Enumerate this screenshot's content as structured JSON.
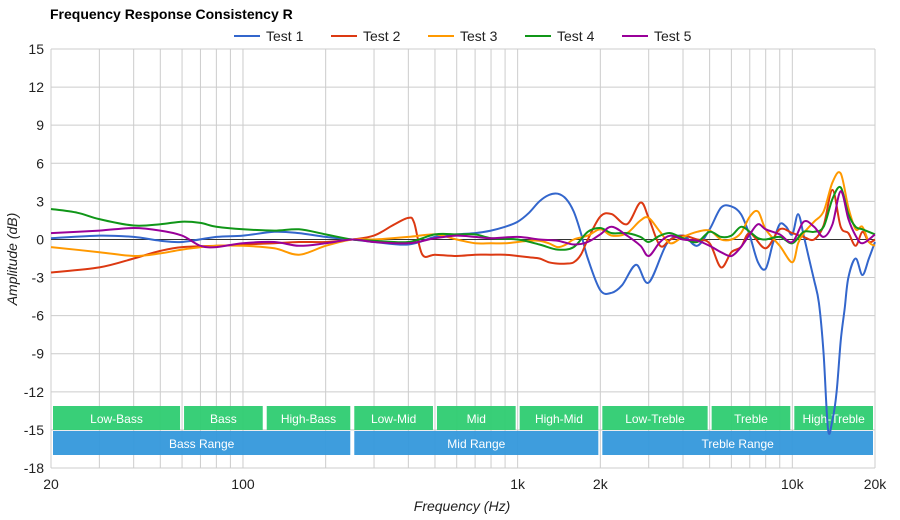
{
  "chart_data": {
    "type": "line",
    "title": "Frequency Response Consistency R",
    "xlabel": "Frequency (Hz)",
    "ylabel": "Amplitude (dB)",
    "xscale": "log",
    "xlim": [
      20,
      20000
    ],
    "ylim": [
      -18,
      15
    ],
    "grid": true,
    "legend_position": "top",
    "x_tick_labels": [
      {
        "value": 20,
        "label": "20"
      },
      {
        "value": 100,
        "label": "100"
      },
      {
        "value": 1000,
        "label": "1k"
      },
      {
        "value": 2000,
        "label": "2k"
      },
      {
        "value": 10000,
        "label": "10k"
      },
      {
        "value": 20000,
        "label": "20k"
      }
    ],
    "y_ticks": [
      15,
      12,
      9,
      6,
      3,
      0,
      -3,
      -6,
      -9,
      -12,
      -15,
      -18
    ],
    "ranges": [
      {
        "label": "Low-Bass",
        "from": 20,
        "to": 60,
        "row": 1
      },
      {
        "label": "Bass",
        "from": 60,
        "to": 120,
        "row": 1
      },
      {
        "label": "High-Bass",
        "from": 120,
        "to": 250,
        "row": 1
      },
      {
        "label": "Low-Mid",
        "from": 250,
        "to": 500,
        "row": 1
      },
      {
        "label": "Mid",
        "from": 500,
        "to": 1000,
        "row": 1
      },
      {
        "label": "High-Mid",
        "from": 1000,
        "to": 2000,
        "row": 1
      },
      {
        "label": "Low-Treble",
        "from": 2000,
        "to": 5000,
        "row": 1
      },
      {
        "label": "Treble",
        "from": 5000,
        "to": 10000,
        "row": 1
      },
      {
        "label": "High-Treble",
        "from": 10000,
        "to": 20000,
        "row": 1
      },
      {
        "label": "Bass Range",
        "from": 20,
        "to": 250,
        "row": 2
      },
      {
        "label": "Mid Range",
        "from": 250,
        "to": 2000,
        "row": 2
      },
      {
        "label": "Treble Range",
        "from": 2000,
        "to": 20000,
        "row": 2
      }
    ],
    "series": [
      {
        "name": "Test 1",
        "color": "#3366cc",
        "x": [
          20,
          30,
          40,
          50,
          60,
          80,
          100,
          130,
          160,
          200,
          250,
          300,
          400,
          500,
          600,
          700,
          800,
          900,
          1000,
          1100,
          1200,
          1300,
          1400,
          1500,
          1600,
          1700,
          1800,
          2000,
          2200,
          2400,
          2700,
          3000,
          3500,
          4000,
          4500,
          5000,
          5500,
          6000,
          6500,
          7000,
          7500,
          8000,
          8500,
          9000,
          9500,
          10000,
          10500,
          11000,
          11500,
          12000,
          12500,
          13000,
          13500,
          14000,
          14500,
          15000,
          15500,
          16000,
          17000,
          18000,
          19000,
          20000
        ],
        "y": [
          0.1,
          0.3,
          0.2,
          -0.1,
          -0.2,
          0.2,
          0.3,
          0.6,
          0.5,
          0.2,
          0.0,
          -0.2,
          -0.4,
          0.2,
          0.4,
          0.5,
          0.7,
          1.0,
          1.4,
          2.1,
          3.0,
          3.5,
          3.6,
          3.2,
          2.2,
          0.5,
          -1.5,
          -4.0,
          -4.2,
          -3.6,
          -2.0,
          -3.4,
          -0.3,
          0.3,
          -0.5,
          0.8,
          2.5,
          2.6,
          2.0,
          0.3,
          -1.8,
          -2.3,
          -0.3,
          1.2,
          1.0,
          0.4,
          2.0,
          0.3,
          -1.5,
          -3.2,
          -5.0,
          -9.0,
          -15.0,
          -14.2,
          -12.0,
          -8.0,
          -5.5,
          -3.0,
          -1.5,
          -2.8,
          -1.5,
          -0.2
        ]
      },
      {
        "name": "Test 2",
        "color": "#dc3912",
        "x": [
          20,
          30,
          40,
          50,
          60,
          80,
          100,
          130,
          160,
          200,
          250,
          300,
          350,
          400,
          420,
          450,
          500,
          600,
          700,
          800,
          900,
          1000,
          1100,
          1200,
          1300,
          1400,
          1500,
          1600,
          1700,
          1800,
          2000,
          2200,
          2500,
          2800,
          3000,
          3300,
          3600,
          4000,
          4500,
          5000,
          5500,
          6000,
          6500,
          7000,
          8000,
          9000,
          10000,
          11000,
          12000,
          13000,
          14000,
          15000,
          16000,
          17000,
          18000,
          19000,
          20000
        ],
        "y": [
          -2.6,
          -2.2,
          -1.5,
          -0.9,
          -0.6,
          -0.5,
          -0.4,
          -0.3,
          -0.2,
          -0.2,
          0.0,
          0.3,
          1.1,
          1.7,
          1.3,
          -1.2,
          -1.2,
          -1.3,
          -1.2,
          -1.2,
          -1.2,
          -1.3,
          -1.4,
          -1.5,
          -1.8,
          -1.9,
          -1.9,
          -1.8,
          -1.2,
          0.0,
          1.8,
          2.0,
          1.2,
          2.9,
          1.7,
          -0.5,
          0.0,
          0.3,
          0.0,
          -0.3,
          -2.2,
          -1.0,
          -0.6,
          0.5,
          -0.7,
          0.8,
          0.5,
          0.2,
          0.0,
          1.1,
          3.9,
          1.0,
          0.5,
          -0.5,
          0.6,
          -0.2,
          0.0
        ]
      },
      {
        "name": "Test 3",
        "color": "#ff9900",
        "x": [
          20,
          30,
          40,
          50,
          60,
          80,
          100,
          130,
          160,
          200,
          250,
          300,
          400,
          500,
          600,
          700,
          800,
          900,
          1000,
          1100,
          1200,
          1300,
          1400,
          1500,
          1600,
          1800,
          2000,
          2200,
          2500,
          2800,
          3000,
          3300,
          3600,
          4000,
          4500,
          5000,
          5500,
          6000,
          6500,
          7000,
          7500,
          8000,
          9000,
          10000,
          10500,
          11000,
          12000,
          13000,
          14000,
          15000,
          16000,
          17000,
          18000,
          19000,
          20000
        ],
        "y": [
          -0.6,
          -1.0,
          -1.3,
          -1.1,
          -0.8,
          -0.5,
          -0.5,
          -0.7,
          -1.2,
          -0.5,
          0.0,
          0.0,
          0.2,
          0.4,
          0.0,
          -0.3,
          -0.3,
          -0.3,
          -0.2,
          -0.1,
          -0.1,
          -0.3,
          -0.6,
          -0.4,
          0.0,
          0.3,
          0.8,
          0.3,
          0.5,
          1.5,
          1.7,
          0.6,
          -0.3,
          0.2,
          0.6,
          0.7,
          0.0,
          0.0,
          0.5,
          1.8,
          2.2,
          0.8,
          -0.5,
          -1.8,
          -0.3,
          0.5,
          1.4,
          2.2,
          4.5,
          5.2,
          2.5,
          0.8,
          1.0,
          -0.2,
          -0.5
        ]
      },
      {
        "name": "Test 4",
        "color": "#109618",
        "x": [
          20,
          25,
          30,
          40,
          50,
          60,
          70,
          80,
          100,
          130,
          160,
          200,
          250,
          300,
          400,
          500,
          600,
          700,
          800,
          1000,
          1200,
          1400,
          1600,
          1800,
          2000,
          2200,
          2500,
          2800,
          3000,
          3300,
          3600,
          4000,
          4500,
          5000,
          5500,
          6000,
          6500,
          7000,
          7500,
          8000,
          9000,
          10000,
          11000,
          12000,
          13000,
          14000,
          15000,
          16000,
          17000,
          18000,
          20000
        ],
        "y": [
          2.4,
          2.1,
          1.6,
          1.1,
          1.2,
          1.4,
          1.3,
          1.0,
          0.8,
          0.7,
          0.8,
          0.4,
          0.0,
          -0.1,
          -0.2,
          0.4,
          0.4,
          0.4,
          0.1,
          0.0,
          -0.4,
          -0.8,
          -0.6,
          0.6,
          0.9,
          0.5,
          0.5,
          0.2,
          -0.2,
          0.3,
          0.5,
          0.1,
          -0.2,
          0.6,
          0.2,
          0.3,
          1.0,
          0.6,
          0.1,
          0.0,
          0.2,
          -0.3,
          0.6,
          0.6,
          1.0,
          3.2,
          4.1,
          2.0,
          1.0,
          0.8,
          0.4
        ]
      },
      {
        "name": "Test 5",
        "color": "#990099",
        "x": [
          20,
          30,
          40,
          50,
          60,
          70,
          80,
          100,
          130,
          160,
          200,
          250,
          300,
          400,
          500,
          600,
          700,
          800,
          1000,
          1200,
          1400,
          1600,
          1800,
          2000,
          2200,
          2500,
          2800,
          3000,
          3300,
          3600,
          4000,
          4500,
          5000,
          5500,
          6000,
          6500,
          7000,
          7500,
          8000,
          9000,
          10000,
          11000,
          12000,
          13000,
          14000,
          15000,
          16000,
          17000,
          18000,
          20000
        ],
        "y": [
          0.5,
          0.7,
          0.9,
          0.7,
          0.3,
          -0.5,
          -0.6,
          -0.3,
          -0.2,
          -0.5,
          -0.3,
          0.0,
          -0.2,
          -0.3,
          0.1,
          0.3,
          0.2,
          0.1,
          0.2,
          0.0,
          -0.1,
          -0.4,
          -0.2,
          0.4,
          1.0,
          0.3,
          -0.5,
          -1.3,
          -0.2,
          0.3,
          0.0,
          -0.1,
          -0.5,
          -1.0,
          -1.3,
          -0.6,
          0.4,
          1.2,
          0.8,
          0.4,
          -0.2,
          1.4,
          1.0,
          0.2,
          1.2,
          3.8,
          1.6,
          0.3,
          -0.3,
          0.4
        ]
      }
    ]
  }
}
